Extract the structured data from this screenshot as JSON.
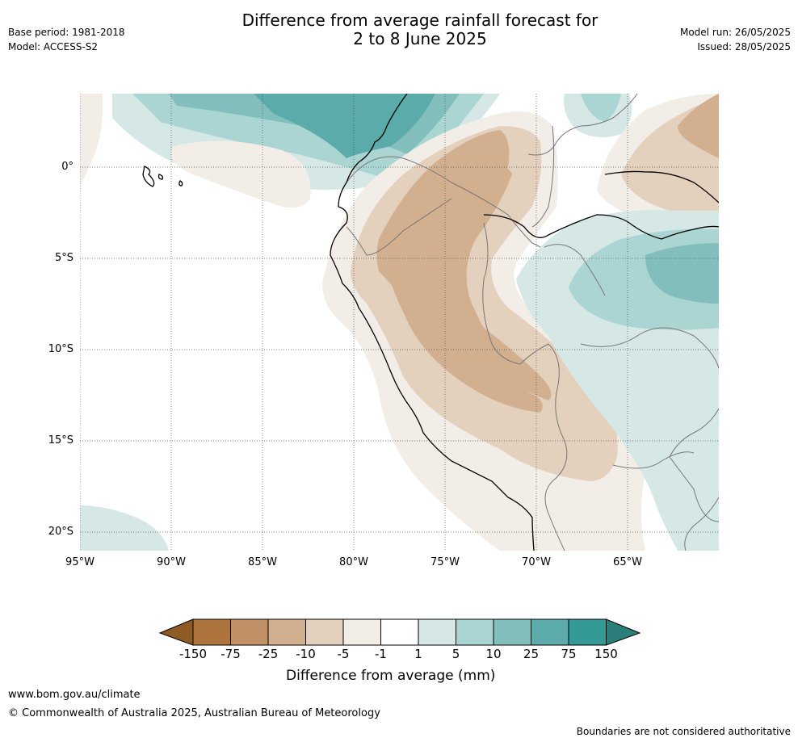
{
  "header": {
    "title_line1": "Difference from average rainfall forecast for",
    "title_line2": "2 to 8 June 2025",
    "base_period": "Base period: 1981-2018",
    "model": "Model: ACCESS-S2",
    "model_run": "Model run: 26/05/2025",
    "issued": "Issued: 28/05/2025"
  },
  "map": {
    "lat_labels": [
      "0°",
      "5°S",
      "10°S",
      "15°S",
      "20°S"
    ],
    "lon_labels": [
      "95°W",
      "90°W",
      "85°W",
      "80°W",
      "75°W",
      "70°W",
      "65°W"
    ]
  },
  "colorbar": {
    "title": "Difference from average (mm)",
    "tick_labels": [
      "-150",
      "-75",
      "-25",
      "-10",
      "-5",
      "-1",
      "1",
      "5",
      "10",
      "25",
      "75",
      "150"
    ],
    "colors": [
      "#8e5a25",
      "#ad743e",
      "#c19067",
      "#d2af8e",
      "#e3d0bd",
      "#f2ede7",
      "#ffffff",
      "#d5e8e6",
      "#aad5d3",
      "#82bfbc",
      "#5aabaa",
      "#339a95",
      "#2a7f7a"
    ]
  },
  "footer": {
    "website": "www.bom.gov.au/climate",
    "copyright": "© Commonwealth of Australia 2025, Australian Bureau of Meteorology",
    "disclaimer": "Boundaries are not considered authoritative"
  }
}
